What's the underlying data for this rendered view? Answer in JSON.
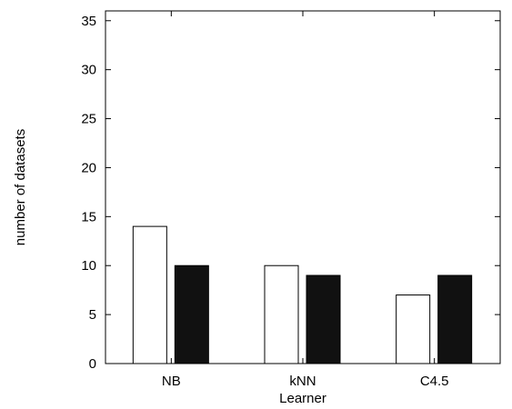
{
  "chart_data": {
    "type": "bar",
    "title": "",
    "xlabel": "Learner",
    "ylabel": "number of datasets",
    "categories": [
      "NB",
      "kNN",
      "C4.5"
    ],
    "series": [
      {
        "values": [
          14,
          10,
          7
        ],
        "color": "#ffffff"
      },
      {
        "values": [
          10,
          9,
          9
        ],
        "color": "#111111"
      }
    ],
    "ylim": [
      0,
      36
    ],
    "yticks": [
      0,
      5,
      10,
      15,
      20,
      25,
      30,
      35
    ],
    "grid": false,
    "legend": "none"
  }
}
